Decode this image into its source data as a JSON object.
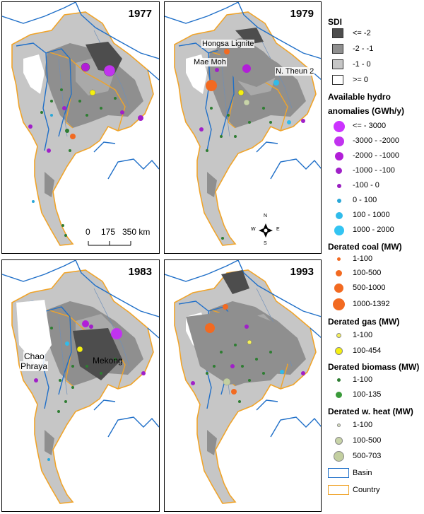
{
  "panels": {
    "p1977": {
      "year": "1977"
    },
    "p1979": {
      "year": "1979"
    },
    "p1983": {
      "year": "1983"
    },
    "p1993": {
      "year": "1993"
    }
  },
  "map_labels": {
    "hongsa": "Hongsa Lignite",
    "maemoh": "Mae Moh",
    "ntheun": "N. Theun 2",
    "chao": "Chao",
    "phraya": "Phraya",
    "mekong": "Mekong"
  },
  "scalebar": {
    "t0": "0",
    "t1": "175",
    "t2": "350 km"
  },
  "compass": {
    "n": "N",
    "s": "S",
    "e": "E",
    "w": "W"
  },
  "legend": {
    "sdi": {
      "title": "SDI",
      "items": [
        {
          "label": "<= -2",
          "color": "#4d4d4d"
        },
        {
          "label": "-2 - -1",
          "color": "#8f8f8f"
        },
        {
          "label": "-1 - 0",
          "color": "#c6c6c6"
        },
        {
          "label": ">= 0",
          "color": "#ffffff"
        }
      ]
    },
    "hydro": {
      "title1": "Available hydro",
      "title2": "anomalies (GWh/y)",
      "items": [
        {
          "label": "<= - 3000",
          "color": "#cc33ff"
        },
        {
          "label": "-3000 - -2000",
          "color": "#c133ef"
        },
        {
          "label": "-2000 - -1000",
          "color": "#b21ed8"
        },
        {
          "label": "-1000 - -100",
          "color": "#a020c8"
        },
        {
          "label": "-100 - 0",
          "color": "#9a1ec0"
        },
        {
          "label": "0 - 100",
          "color": "#2aa7d8"
        },
        {
          "label": "100 - 1000",
          "color": "#30bbea"
        },
        {
          "label": "1000 - 2000",
          "color": "#33c4f2"
        }
      ]
    },
    "coal": {
      "title": "Derated coal (MW)",
      "items": [
        {
          "label": "1-100",
          "color": "#f26a21"
        },
        {
          "label": "100-500",
          "color": "#f26a21"
        },
        {
          "label": "500-1000",
          "color": "#f26a21"
        },
        {
          "label": "1000-1392",
          "color": "#f26a21"
        }
      ]
    },
    "gas": {
      "title": "Derated gas (MW)",
      "items": [
        {
          "label": "1-100",
          "color": "#f5f05a"
        },
        {
          "label": "100-454",
          "color": "#f5f010"
        }
      ]
    },
    "biomass": {
      "title": "Derated biomass (MW)",
      "items": [
        {
          "label": "1-100",
          "color": "#2e7d32"
        },
        {
          "label": "100-135",
          "color": "#3a9a3a"
        }
      ]
    },
    "heat": {
      "title": "Derated w. heat (MW)",
      "items": [
        {
          "label": "1-100",
          "color": "#d8e0c0"
        },
        {
          "label": "100-500",
          "color": "#c8d4a8"
        },
        {
          "label": "500-703",
          "color": "#c3cfa0"
        }
      ]
    },
    "basin": {
      "label": "Basin",
      "color": "#1f6fc8"
    },
    "country": {
      "label": "Country",
      "color": "#f0a42a"
    }
  }
}
